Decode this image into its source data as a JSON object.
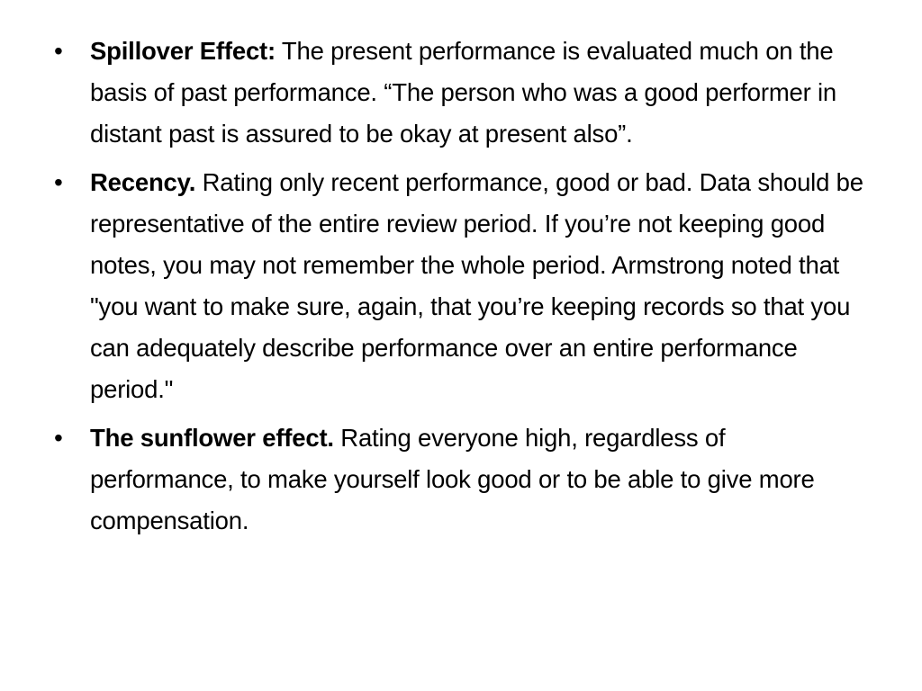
{
  "items": [
    {
      "term": "Spillover Effect:",
      "text": "The present performance is evaluated much on the basis of past performance. “The person who was a good performer in distant past is assured to be okay at present also”."
    },
    {
      "term": "Recency.",
      "text": "Rating only recent performance, good or bad. Data should be representative of the entire review period. If you’re not keeping good notes, you may not remember the whole period. Armstrong noted that \"you want to make sure, again, that you’re keeping records so that you can adequately describe performance over an entire performance period.\""
    },
    {
      "term": "The sunflower effect.",
      "text": "Rating everyone high, regardless of performance, to make yourself look good or to be able to give more compensation."
    }
  ]
}
